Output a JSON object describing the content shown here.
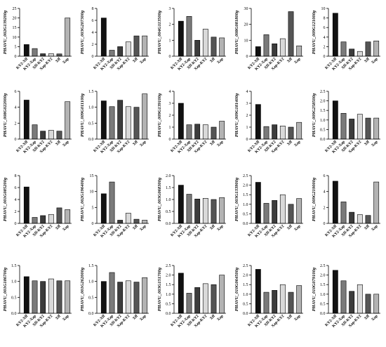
{
  "colors": {
    "KY2-Xff": "#111111",
    "KY2-Xap": "#7a7a7a",
    "Xff-KY2": "#3c3c3c",
    "Xap-KY2": "#d9d9d9",
    "Xff": "#555555",
    "Xap": "#b3b3b3"
  },
  "chart_data": [
    {
      "type": "bar",
      "ylabel": "PHAVU_002G139200g",
      "categories": [
        "KY2-Xff",
        "KY2-Xap",
        "Xff-KY2",
        "Xap-KY2",
        "Xff",
        "Xap"
      ],
      "values": [
        6.1,
        4.0,
        1.3,
        1.3,
        1.2,
        20.0
      ],
      "ylim": [
        0,
        25
      ],
      "yticks": [
        "0",
        "5",
        "10",
        "15",
        "20",
        "25"
      ]
    },
    {
      "type": "bar",
      "ylabel": "PHAVU_003G207300g",
      "categories": [
        "KY2-Xff",
        "KY2-Xap",
        "Xff-KY2",
        "Xap-KY2",
        "Xff",
        "Xap"
      ],
      "values": [
        6.4,
        1.0,
        1.6,
        2.4,
        3.4,
        3.4
      ],
      "ylim": [
        0,
        8
      ],
      "yticks": [
        "0",
        "2",
        "4",
        "6",
        "8"
      ]
    },
    {
      "type": "bar",
      "ylabel": "PHAVU_004G113500g",
      "categories": [
        "KY2-Xff",
        "KY2-Xap",
        "Xff-KY2",
        "Xap-KY2",
        "Xff",
        "Xap"
      ],
      "values": [
        2.2,
        2.5,
        1.0,
        1.7,
        1.2,
        1.15
      ],
      "ylim": [
        0,
        3
      ],
      "yticks": [
        "0",
        "1",
        "2",
        "3"
      ]
    },
    {
      "type": "bar",
      "ylabel": "PHAVU_008G081800g",
      "categories": [
        "KY2-Xff",
        "KY2-Xap",
        "Xff-KY2",
        "Xap-KY2",
        "Xff",
        "Xap"
      ],
      "values": [
        6.0,
        13.5,
        7.8,
        11.0,
        28.0,
        6.5
      ],
      "ylim": [
        0,
        30
      ],
      "yticks": [
        "0",
        "10",
        "20",
        "30"
      ]
    },
    {
      "type": "bar",
      "ylabel": "PHAVU_009G121000g",
      "categories": [
        "KY2-Xff",
        "KY2-Xap",
        "Xff-KY2",
        "Xap-KY2",
        "Xff",
        "Xap"
      ],
      "values": [
        9.0,
        3.0,
        1.5,
        1.0,
        3.0,
        3.2
      ],
      "ylim": [
        0,
        10
      ],
      "yticks": [
        "0",
        "2",
        "4",
        "6",
        "8",
        "10"
      ]
    },
    {
      "type": "bar",
      "ylabel": "PHAVU_008G022000g",
      "categories": [
        "KY2-Xff",
        "KY2-Xap",
        "Xff-KY2",
        "Xap-KY2",
        "Xff",
        "Xap"
      ],
      "values": [
        4.9,
        1.8,
        1.0,
        1.1,
        1.0,
        4.7
      ],
      "ylim": [
        0,
        6
      ],
      "yticks": [
        "0",
        "2",
        "4",
        "6"
      ]
    },
    {
      "type": "bar",
      "ylabel": "PHAVU_009G011100g",
      "categories": [
        "KY2-Xff",
        "KY2-Xap",
        "Xff-KY2",
        "Xap-KY2",
        "Xff",
        "Xap"
      ],
      "values": [
        1.2,
        1.02,
        1.22,
        1.02,
        1.0,
        1.42
      ],
      "ylim": [
        0,
        1.5
      ],
      "yticks": [
        "0.0",
        "0.5",
        "1.0",
        "1.5"
      ]
    },
    {
      "type": "bar",
      "ylabel": "PHAVU_009G139100g",
      "categories": [
        "KY2-Xff",
        "KY2-Xap",
        "Xff-KY2",
        "Xap-KY2",
        "Xff",
        "Xap"
      ],
      "values": [
        3.0,
        1.2,
        1.25,
        1.2,
        1.0,
        1.5
      ],
      "ylim": [
        0,
        4
      ],
      "yticks": [
        "0",
        "1",
        "2",
        "3",
        "4"
      ]
    },
    {
      "type": "bar",
      "ylabel": "PHAVU_009G181400g",
      "categories": [
        "KY2-Xff",
        "KY2-Xap",
        "Xff-KY2",
        "Xap-KY2",
        "Xff",
        "Xap"
      ],
      "values": [
        2.9,
        1.05,
        1.2,
        1.1,
        1.0,
        1.4
      ],
      "ylim": [
        0,
        4
      ],
      "yticks": [
        "0",
        "1",
        "2",
        "3",
        "4"
      ]
    },
    {
      "type": "bar",
      "ylabel": "PHAVU_009G258500g",
      "categories": [
        "KY2-Xff",
        "KY2-Xap",
        "Xff-KY2",
        "Xap-KY2",
        "Xff",
        "Xap"
      ],
      "values": [
        2.0,
        1.35,
        1.05,
        1.3,
        1.1,
        1.1
      ],
      "ylim": [
        0,
        2.5
      ],
      "yticks": [
        "0.0",
        "0.5",
        "1.0",
        "1.5",
        "2.0",
        "2.5"
      ]
    },
    {
      "type": "bar",
      "ylabel": "PHAVU_001G085200g",
      "categories": [
        "KY2-Xff",
        "KY2-Xap",
        "Xff-KY2",
        "Xap-KY2",
        "Xff",
        "Xap"
      ],
      "values": [
        6.1,
        1.0,
        1.3,
        1.5,
        2.6,
        2.3
      ],
      "ylim": [
        0,
        8
      ],
      "yticks": [
        "0",
        "2",
        "4",
        "6",
        "8"
      ]
    },
    {
      "type": "bar",
      "ylabel": "PHAVU_002G196400g",
      "categories": [
        "KY2-Xff",
        "KY2-Xap",
        "Xff-KY2",
        "Xap-KY2",
        "Xff",
        "Xap"
      ],
      "values": [
        9.3,
        13.0,
        1.0,
        3.2,
        1.3,
        1.0
      ],
      "ylim": [
        0,
        15
      ],
      "yticks": [
        "0",
        "5",
        "10",
        "15"
      ]
    },
    {
      "type": "bar",
      "ylabel": "PHAVU_003G068300g",
      "categories": [
        "KY2-Xff",
        "KY2-Xap",
        "Xff-KY2",
        "Xap-KY2",
        "Xff",
        "Xap"
      ],
      "values": [
        1.6,
        1.22,
        1.02,
        1.05,
        1.0,
        1.08
      ],
      "ylim": [
        0,
        2.0
      ],
      "yticks": [
        "0.0",
        "0.5",
        "1.0",
        "1.5",
        "2.0"
      ]
    },
    {
      "type": "bar",
      "ylabel": "PHAVU_003G133900g",
      "categories": [
        "KY2-Xff",
        "KY2-Xap",
        "Xff-KY2",
        "Xap-KY2",
        "Xff",
        "Xap"
      ],
      "values": [
        2.15,
        1.05,
        1.2,
        1.5,
        1.0,
        1.3
      ],
      "ylim": [
        0,
        2.5
      ],
      "yticks": [
        "0.0",
        "0.5",
        "1.0",
        "1.5",
        "2.0",
        "2.5"
      ]
    },
    {
      "type": "bar",
      "ylabel": "PHAVU_009G219000g",
      "categories": [
        "KY2-Xff",
        "KY2-Xap",
        "Xff-KY2",
        "Xap-KY2",
        "Xff",
        "Xap"
      ],
      "values": [
        5.3,
        2.7,
        1.4,
        1.1,
        1.0,
        5.2
      ],
      "ylim": [
        0,
        6
      ],
      "yticks": [
        "0",
        "2",
        "4",
        "6"
      ]
    },
    {
      "type": "bar",
      "ylabel": "PHAVU_001G186700g",
      "categories": [
        "KY2-Xff",
        "KY2-Xap",
        "Xff-KY2",
        "Xap-KY2",
        "Xff",
        "Xap"
      ],
      "values": [
        1.15,
        1.02,
        1.0,
        1.08,
        1.02,
        1.02
      ],
      "ylim": [
        0,
        1.5
      ],
      "yticks": [
        "0.0",
        "0.5",
        "1.0",
        "1.5"
      ]
    },
    {
      "type": "bar",
      "ylabel": "PHAVU_001G262000g",
      "categories": [
        "KY2-Xff",
        "KY2-Xap",
        "Xff-KY2",
        "Xap-KY2",
        "Xff",
        "Xap"
      ],
      "values": [
        1.0,
        1.28,
        0.98,
        1.02,
        0.98,
        1.12
      ],
      "ylim": [
        0,
        1.5
      ],
      "yticks": [
        "0.0",
        "0.5",
        "1.0",
        "1.5"
      ]
    },
    {
      "type": "bar",
      "ylabel": "PHAVU_003G151700g",
      "categories": [
        "KY2-Xff",
        "KY2-Xap",
        "Xff-KY2",
        "Xap-KY2",
        "Xff",
        "Xap"
      ],
      "values": [
        2.1,
        1.05,
        1.35,
        1.55,
        1.5,
        2.0
      ],
      "ylim": [
        0,
        2.5
      ],
      "yticks": [
        "0.0",
        "0.5",
        "1.0",
        "1.5",
        "2.0",
        "2.5"
      ]
    },
    {
      "type": "bar",
      "ylabel": "PHAVU_010G064500g",
      "categories": [
        "KY2-Xff",
        "KY2-Xap",
        "Xff-KY2",
        "Xap-KY2",
        "Xff",
        "Xap"
      ],
      "values": [
        2.3,
        1.1,
        1.2,
        1.5,
        1.1,
        1.45
      ],
      "ylim": [
        0,
        2.5
      ],
      "yticks": [
        "0.0",
        "0.5",
        "1.0",
        "1.5",
        "2.0",
        "2.5"
      ]
    },
    {
      "type": "bar",
      "ylabel": "PHAVU_010G079100g",
      "categories": [
        "KY2-Xff",
        "KY2-Xap",
        "Xff-KY2",
        "Xap-KY2",
        "Xff",
        "Xap"
      ],
      "values": [
        2.25,
        1.7,
        1.15,
        1.5,
        1.0,
        1.0
      ],
      "ylim": [
        0,
        2.5
      ],
      "yticks": [
        "0.0",
        "0.5",
        "1.0",
        "1.5",
        "2.0",
        "2.5"
      ]
    }
  ]
}
